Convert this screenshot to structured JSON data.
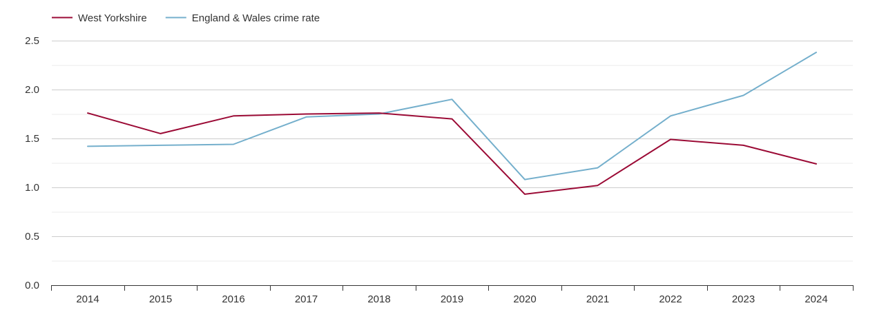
{
  "chart_data": {
    "type": "line",
    "x": [
      "2014",
      "2015",
      "2016",
      "2017",
      "2018",
      "2019",
      "2020",
      "2021",
      "2022",
      "2023",
      "2024"
    ],
    "series": [
      {
        "name": "West Yorkshire",
        "color": "#9b0a35",
        "values": [
          1.76,
          1.55,
          1.73,
          1.75,
          1.76,
          1.7,
          0.93,
          1.02,
          1.49,
          1.43,
          1.24
        ]
      },
      {
        "name": "England & Wales crime rate",
        "color": "#74afcc",
        "values": [
          1.42,
          1.43,
          1.44,
          1.72,
          1.75,
          1.9,
          1.08,
          1.2,
          1.73,
          1.94,
          2.38
        ]
      }
    ],
    "yticks": [
      "0.0",
      "0.5",
      "1.0",
      "1.5",
      "2.0",
      "2.5"
    ],
    "ylim": [
      0,
      2.5
    ],
    "grid": true,
    "legend_position": "top-left"
  }
}
